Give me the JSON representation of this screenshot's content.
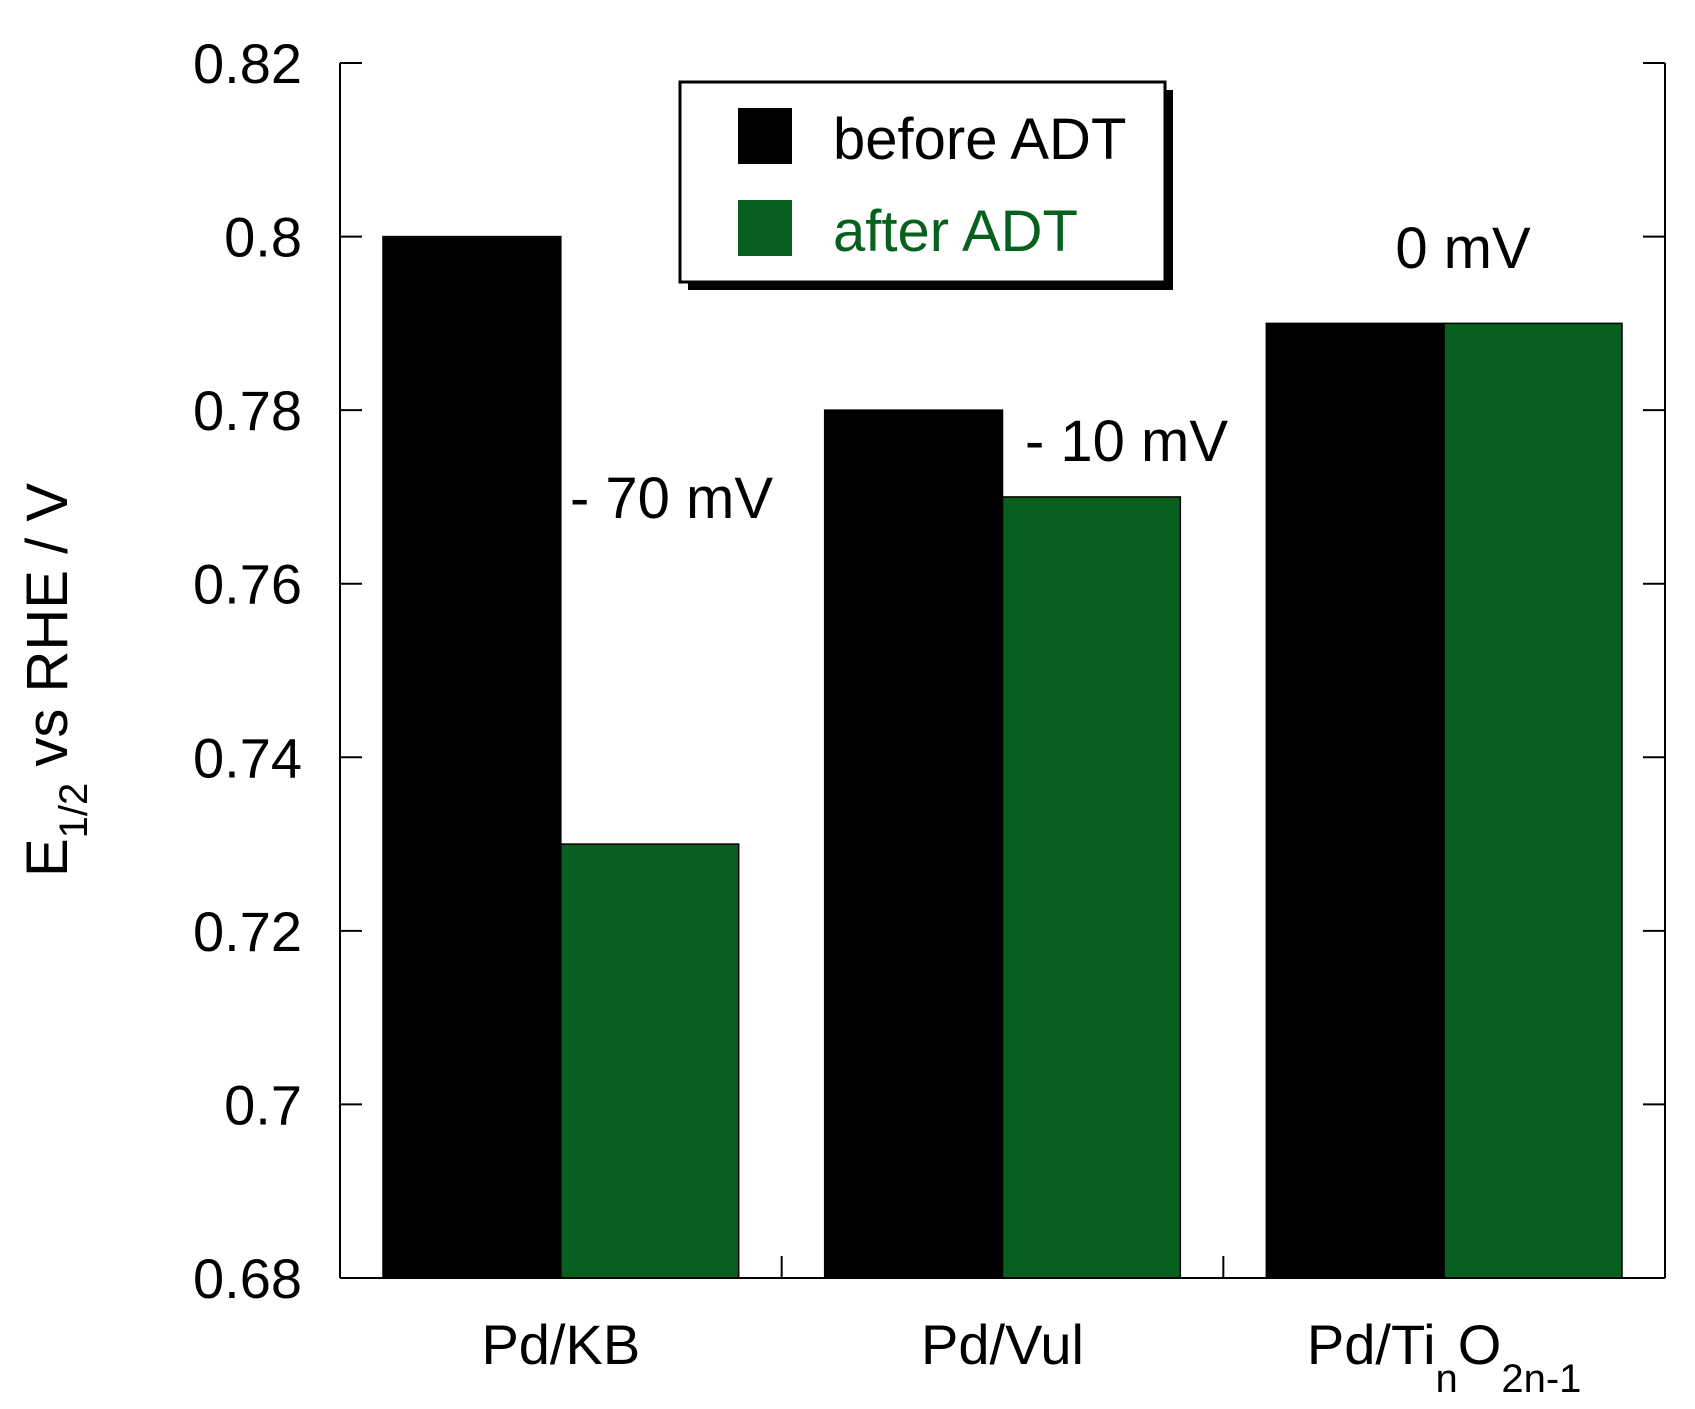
{
  "chart_data": {
    "type": "bar",
    "categories": [
      {
        "label": "Pd/KB"
      },
      {
        "label": "Pd/Vul"
      },
      {
        "label": "Pd/Ti",
        "sub1": "n",
        "mid": "O",
        "sub2": "2n-1"
      }
    ],
    "series": [
      {
        "name": "before ADT",
        "color": "#000000",
        "values": [
          0.8,
          0.78,
          0.79
        ]
      },
      {
        "name": "after ADT",
        "color": "#07601d",
        "values": [
          0.73,
          0.77,
          0.79
        ]
      }
    ],
    "ylim": [
      0.68,
      0.82
    ],
    "yticks": [
      0.68,
      0.7,
      0.72,
      0.74,
      0.76,
      0.78,
      0.8,
      0.82
    ],
    "ytick_labels": [
      "0.68",
      "0.7",
      "0.72",
      "0.74",
      "0.76",
      "0.78",
      "0.8",
      "0.82"
    ],
    "ylabel": {
      "main": "E",
      "sub": "1/2",
      "rest": " vs RHE / V"
    },
    "xlabel": "",
    "title": "",
    "legend_position": "top-center",
    "annotations": [
      {
        "text": "- 70 mV",
        "category": 0
      },
      {
        "text": "- 10 mV",
        "category": 1
      },
      {
        "text": "0 mV",
        "category": 2
      }
    ]
  }
}
